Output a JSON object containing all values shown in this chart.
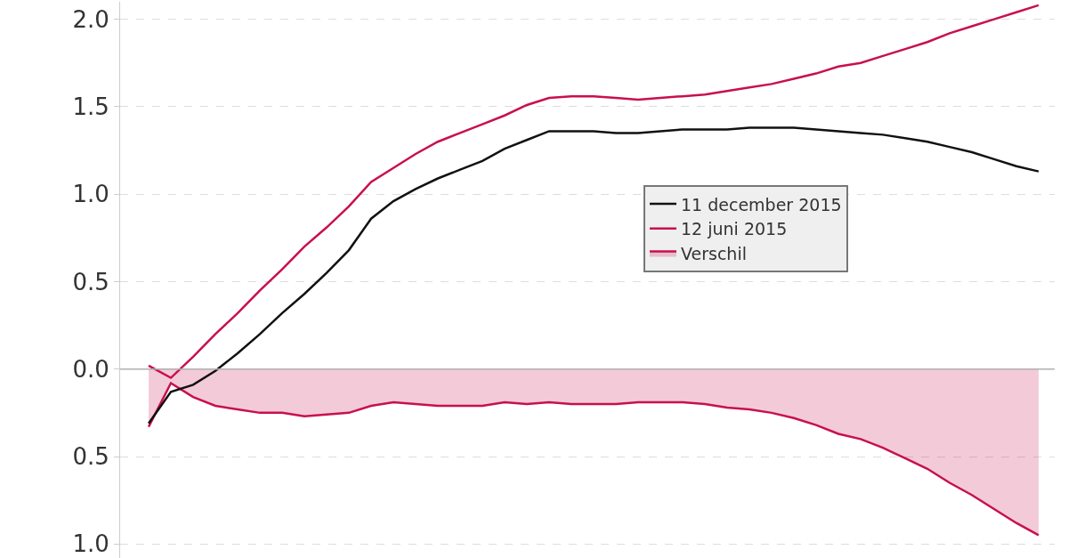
{
  "chart_data": {
    "type": "line",
    "categories": [
      null,
      null,
      null,
      null,
      null,
      null,
      null,
      null,
      null,
      null,
      null,
      null,
      null,
      null,
      null,
      null,
      null,
      null,
      null,
      null,
      null,
      null,
      null,
      null,
      null,
      null,
      null,
      null,
      null,
      null,
      null,
      null,
      null,
      null,
      null,
      null,
      null,
      null,
      null,
      null,
      null
    ],
    "series": [
      {
        "name": "11 december 2015",
        "color": "#111111",
        "values": [
          -0.31,
          -0.13,
          -0.09,
          -0.01,
          0.09,
          0.2,
          0.32,
          0.43,
          0.55,
          0.68,
          0.86,
          0.96,
          1.03,
          1.09,
          1.14,
          1.19,
          1.26,
          1.31,
          1.36,
          1.36,
          1.36,
          1.35,
          1.35,
          1.36,
          1.37,
          1.37,
          1.37,
          1.38,
          1.38,
          1.38,
          1.37,
          1.36,
          1.35,
          1.34,
          1.32,
          1.3,
          1.27,
          1.24,
          1.2,
          1.16,
          1.13
        ]
      },
      {
        "name": "12 juni 2015",
        "color": "#c8104e",
        "values": [
          0.02,
          -0.05,
          0.07,
          0.2,
          0.32,
          0.45,
          0.57,
          0.7,
          0.81,
          0.93,
          1.07,
          1.15,
          1.23,
          1.3,
          1.35,
          1.4,
          1.45,
          1.51,
          1.55,
          1.56,
          1.56,
          1.55,
          1.54,
          1.55,
          1.56,
          1.57,
          1.59,
          1.61,
          1.63,
          1.66,
          1.69,
          1.73,
          1.75,
          1.79,
          1.83,
          1.87,
          1.92,
          1.96,
          2.0,
          2.04,
          2.08
        ]
      },
      {
        "name": "Verschil",
        "type": "area",
        "color": "#c8104e",
        "values": [
          -0.33,
          -0.08,
          -0.16,
          -0.21,
          -0.23,
          -0.25,
          -0.25,
          -0.27,
          -0.26,
          -0.25,
          -0.21,
          -0.19,
          -0.2,
          -0.21,
          -0.21,
          -0.21,
          -0.19,
          -0.2,
          -0.19,
          -0.2,
          -0.2,
          -0.2,
          -0.19,
          -0.19,
          -0.19,
          -0.2,
          -0.22,
          -0.23,
          -0.25,
          -0.28,
          -0.32,
          -0.37,
          -0.4,
          -0.45,
          -0.51,
          -0.57,
          -0.65,
          -0.72,
          -0.8,
          -0.88,
          -0.95
        ]
      }
    ],
    "ylim": [
      -1.08,
      2.1
    ],
    "yticks": [
      {
        "value": -1.0,
        "label": "1.0"
      },
      {
        "value": -0.5,
        "label": "0.5"
      },
      {
        "value": 0.0,
        "label": "0.0"
      },
      0.5,
      {
        "value": 1.0,
        "label": "1.0"
      },
      1.5,
      {
        "value": 2.0,
        "label": "2.0"
      }
    ],
    "ref_lines": [
      {
        "axis": "y",
        "value": 0,
        "color": "#b0b0b0"
      }
    ],
    "grid": "y",
    "legend": "right",
    "tick_labels": "y",
    "marker": "none",
    "line_style": "solid"
  }
}
